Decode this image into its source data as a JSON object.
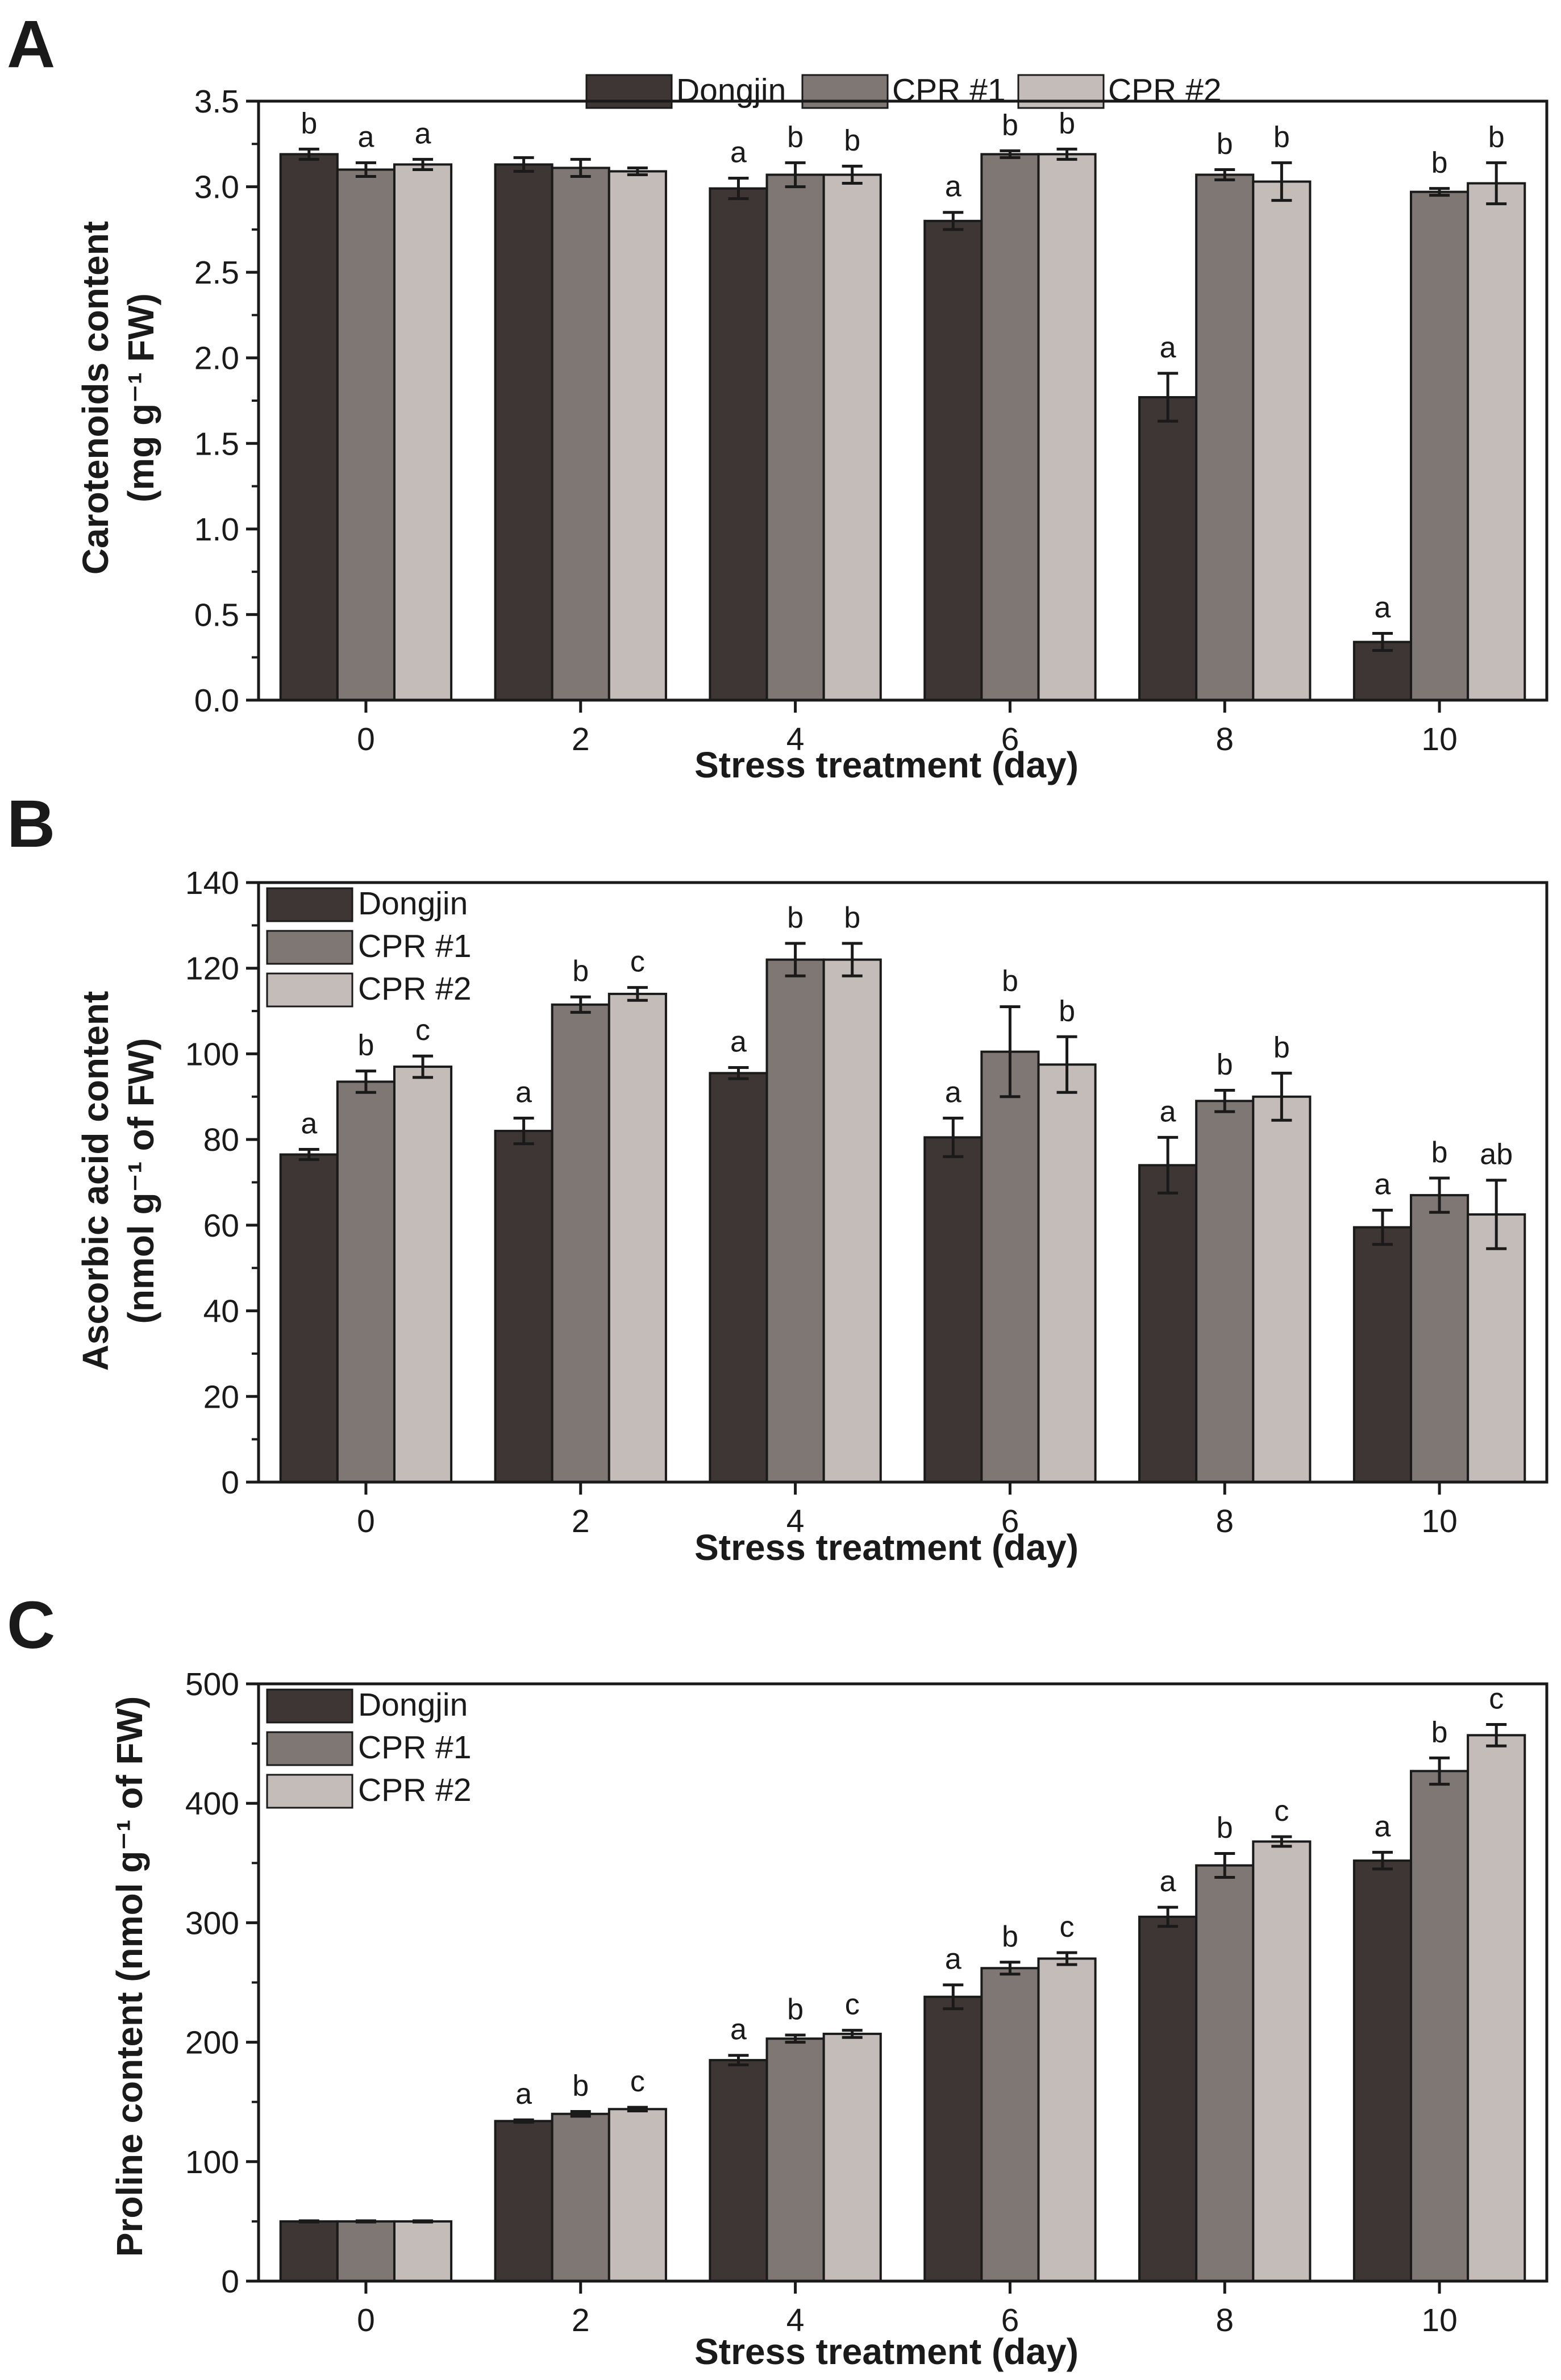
{
  "colors": {
    "Dongjin": "#3d3634",
    "CPR #1": "#7f7774",
    "CPR #2": "#c3bcb9",
    "stroke": "#1a1a1a"
  },
  "chart_data": [
    {
      "panel": "A",
      "type": "bar",
      "title": "",
      "xlabel": "Stress treatment (day)",
      "ylabel_line1": "Carotenoids content",
      "ylabel_line2": "(mg g⁻¹ FW)",
      "ylim": [
        0,
        3.5
      ],
      "yticks": [
        0,
        0.5,
        1.0,
        1.5,
        2.0,
        2.5,
        3.0,
        3.5
      ],
      "ytick_labels": [
        "0.0",
        "0.5",
        "1.0",
        "1.5",
        "2.0",
        "2.5",
        "3.0",
        "3.5"
      ],
      "categories": [
        "0",
        "2",
        "4",
        "6",
        "8",
        "10"
      ],
      "legend_position": "top",
      "series": [
        {
          "name": "Dongjin",
          "values": [
            3.19,
            3.13,
            2.99,
            2.8,
            1.77,
            0.34
          ],
          "errors": [
            0.03,
            0.04,
            0.06,
            0.05,
            0.14,
            0.05
          ],
          "sig": [
            "b",
            "",
            "a",
            "a",
            "a",
            "a"
          ]
        },
        {
          "name": "CPR #1",
          "values": [
            3.1,
            3.11,
            3.07,
            3.19,
            3.07,
            2.97
          ],
          "errors": [
            0.04,
            0.05,
            0.07,
            0.02,
            0.03,
            0.02
          ],
          "sig": [
            "a",
            "",
            "b",
            "b",
            "b",
            "b"
          ]
        },
        {
          "name": "CPR #2",
          "values": [
            3.13,
            3.09,
            3.07,
            3.19,
            3.03,
            3.02
          ],
          "errors": [
            0.03,
            0.02,
            0.05,
            0.03,
            0.11,
            0.12
          ],
          "sig": [
            "a",
            "",
            "b",
            "b",
            "b",
            "b"
          ]
        }
      ]
    },
    {
      "panel": "B",
      "type": "bar",
      "title": "",
      "xlabel": "Stress treatment (day)",
      "ylabel_line1": "Ascorbic acid content",
      "ylabel_line2": "(nmol g⁻¹ of FW)",
      "ylim": [
        0,
        140
      ],
      "yticks": [
        0,
        20,
        40,
        60,
        80,
        100,
        120,
        140
      ],
      "ytick_labels": [
        "0",
        "20",
        "40",
        "60",
        "80",
        "100",
        "120",
        "140"
      ],
      "categories": [
        "0",
        "2",
        "4",
        "6",
        "8",
        "10"
      ],
      "legend_position": "top-left",
      "series": [
        {
          "name": "Dongjin",
          "values": [
            76.5,
            82.0,
            95.5,
            80.5,
            74.0,
            59.5
          ],
          "errors": [
            1.2,
            3.0,
            1.3,
            4.5,
            6.5,
            4.0
          ],
          "sig": [
            "a",
            "a",
            "a",
            "a",
            "a",
            "a"
          ]
        },
        {
          "name": "CPR #1",
          "values": [
            93.5,
            111.5,
            122.0,
            100.5,
            89.0,
            67.0
          ],
          "errors": [
            2.5,
            1.8,
            3.8,
            10.5,
            2.5,
            4.0
          ],
          "sig": [
            "b",
            "b",
            "b",
            "b",
            "b",
            "b"
          ]
        },
        {
          "name": "CPR #2",
          "values": [
            97.0,
            114.0,
            122.0,
            97.5,
            90.0,
            62.5
          ],
          "errors": [
            2.5,
            1.5,
            3.8,
            6.5,
            5.5,
            8.0
          ],
          "sig": [
            "c",
            "c",
            "b",
            "b",
            "b",
            "ab"
          ]
        }
      ]
    },
    {
      "panel": "C",
      "type": "bar",
      "title": "",
      "xlabel": "Stress treatment (day)",
      "ylabel_line1": "Proline content (nmol g⁻¹ of FW)",
      "ylabel_line2": "",
      "ylim": [
        0,
        500
      ],
      "yticks": [
        0,
        100,
        200,
        300,
        400,
        500
      ],
      "ytick_labels": [
        "0",
        "100",
        "200",
        "300",
        "400",
        "500"
      ],
      "categories": [
        "0",
        "2",
        "4",
        "6",
        "8",
        "10"
      ],
      "legend_position": "top-left",
      "series": [
        {
          "name": "Dongjin",
          "values": [
            50,
            134,
            185,
            238,
            305,
            352
          ],
          "errors": [
            0.5,
            1.0,
            4.0,
            10.0,
            8.0,
            7.0
          ],
          "sig": [
            "",
            "a",
            "a",
            "a",
            "a",
            "a"
          ]
        },
        {
          "name": "CPR #1",
          "values": [
            50,
            140,
            203,
            262,
            348,
            427
          ],
          "errors": [
            0.5,
            2.0,
            3.0,
            5.0,
            10.0,
            11.0
          ],
          "sig": [
            "",
            "b",
            "b",
            "b",
            "b",
            "b"
          ]
        },
        {
          "name": "CPR #2",
          "values": [
            50,
            144,
            207,
            270,
            368,
            457
          ],
          "errors": [
            0.5,
            1.5,
            3.0,
            5.0,
            4.0,
            9.0
          ],
          "sig": [
            "",
            "c",
            "c",
            "c",
            "c",
            "c"
          ]
        }
      ]
    }
  ]
}
